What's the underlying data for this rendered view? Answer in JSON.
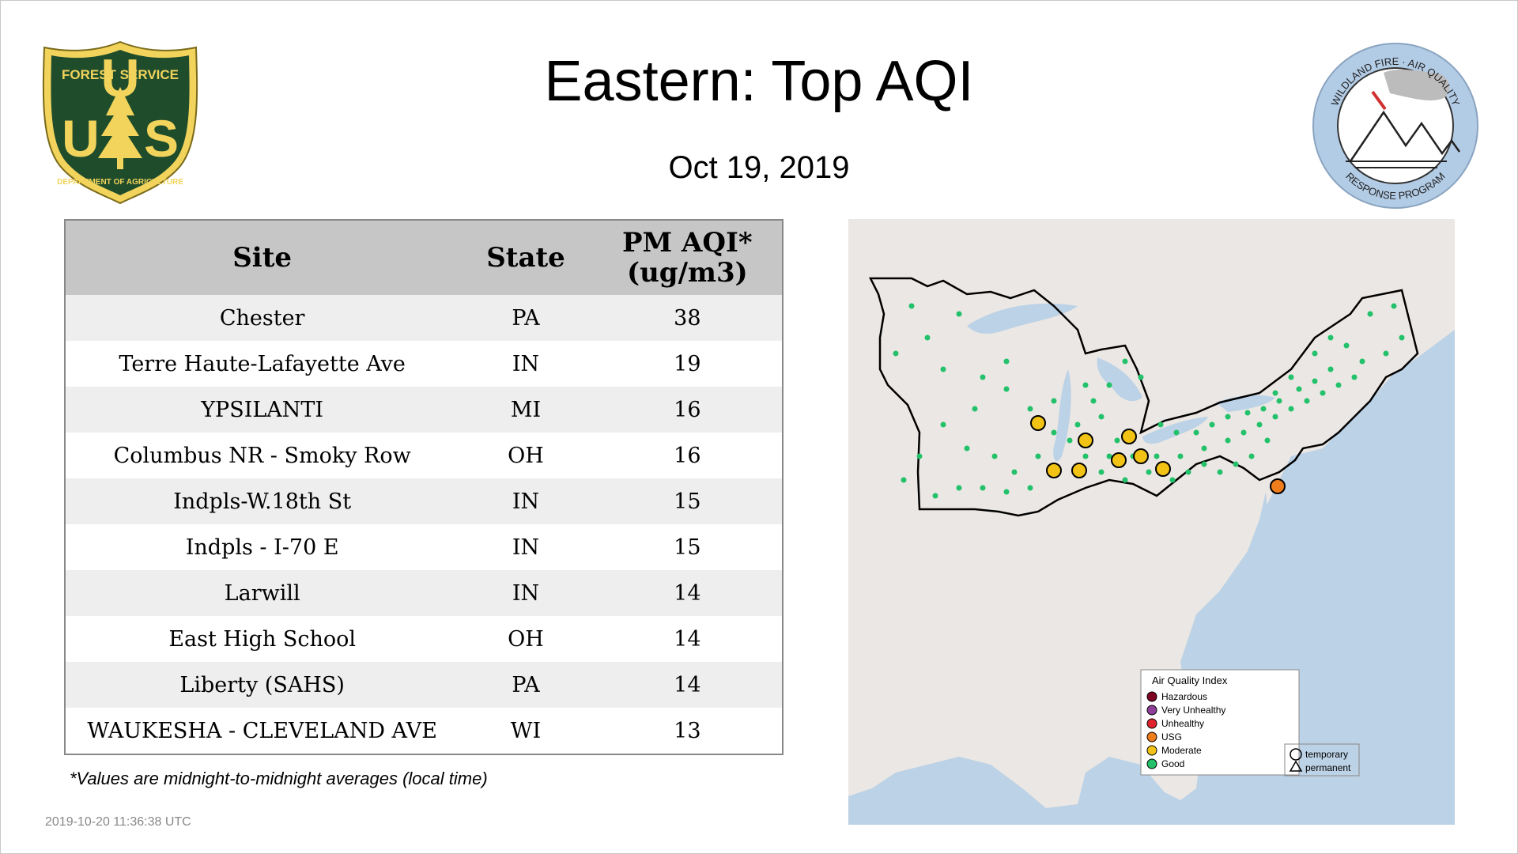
{
  "header": {
    "title": "Eastern: Top AQI",
    "date": "Oct 19, 2019"
  },
  "logos": {
    "usfs": {
      "top_text": "FOREST SERVICE",
      "bottom_text": "DEPARTMENT OF AGRICULTURE",
      "letters": "US"
    },
    "wfar": {
      "top_text": "WILDLAND FIRE · AIR QUALITY",
      "bottom_text": "RESPONSE PROGRAM"
    }
  },
  "table": {
    "headers": {
      "site": "Site",
      "state": "State",
      "aqi_line1": "PM AQI*",
      "aqi_line2": "(ug/m3)"
    },
    "rows": [
      {
        "site": "Chester",
        "state": "PA",
        "aqi": "38"
      },
      {
        "site": "Terre Haute-Lafayette Ave",
        "state": "IN",
        "aqi": "19"
      },
      {
        "site": "YPSILANTI",
        "state": "MI",
        "aqi": "16"
      },
      {
        "site": "Columbus NR - Smoky Row",
        "state": "OH",
        "aqi": "16"
      },
      {
        "site": "Indpls-W.18th St",
        "state": "IN",
        "aqi": "15"
      },
      {
        "site": "Indpls - I-70 E",
        "state": "IN",
        "aqi": "15"
      },
      {
        "site": "Larwill",
        "state": "IN",
        "aqi": "14"
      },
      {
        "site": "East High School",
        "state": "OH",
        "aqi": "14"
      },
      {
        "site": "Liberty (SAHS)",
        "state": "PA",
        "aqi": "14"
      },
      {
        "site": "WAUKESHA - CLEVELAND AVE",
        "state": "WI",
        "aqi": "13"
      }
    ]
  },
  "footnote": "*Values are midnight-to-midnight averages (local time)",
  "timestamp": "2019-10-20 11:36:38 UTC",
  "map": {
    "legend": {
      "title": "Air Quality Index",
      "categories": [
        {
          "label": "Hazardous",
          "color": "#7e0023"
        },
        {
          "label": "Very Unhealthy",
          "color": "#8f3f97"
        },
        {
          "label": "Unhealthy",
          "color": "#e0242e"
        },
        {
          "label": "USG",
          "color": "#f07d1b"
        },
        {
          "label": "Moderate",
          "color": "#f2c314"
        },
        {
          "label": "Good",
          "color": "#22c16a"
        }
      ],
      "types": [
        {
          "label": "temporary"
        },
        {
          "label": "permanent"
        }
      ]
    },
    "colors": {
      "land": "#ebe7e4",
      "water": "#bcd2e6",
      "region": "#000000"
    }
  }
}
